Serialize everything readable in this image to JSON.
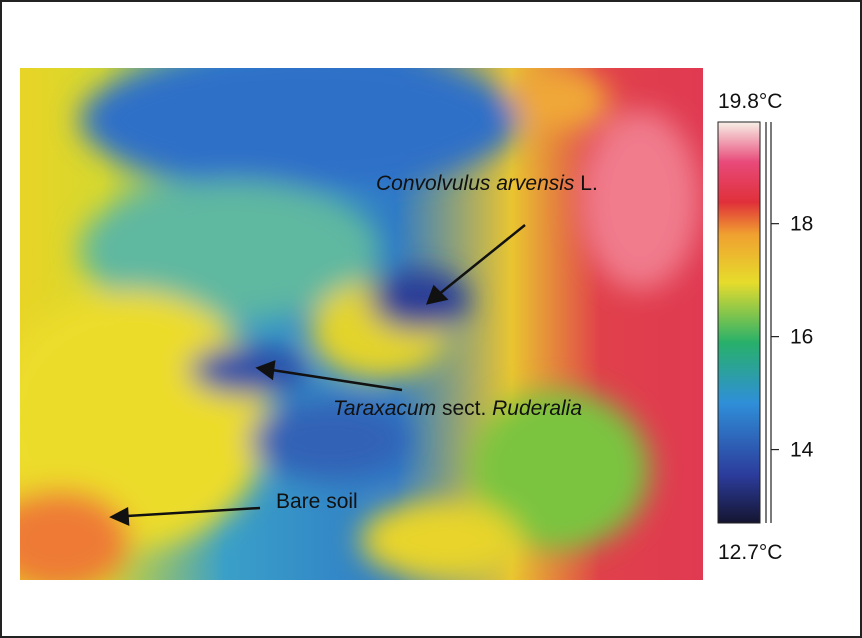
{
  "annotations": [
    {
      "parts": [
        {
          "text": "Convolvulus arvensis",
          "italic": true
        },
        {
          "text": " L.",
          "italic": false
        }
      ]
    },
    {
      "parts": [
        {
          "text": "Taraxacum",
          "italic": true
        },
        {
          "text": " sect. ",
          "italic": false
        },
        {
          "text": "Ruderalia",
          "italic": true
        }
      ]
    },
    {
      "parts": [
        {
          "text": "Bare soil",
          "italic": false
        }
      ]
    }
  ],
  "colorbar": {
    "range": [
      {
        "value": 12.7,
        "label": "12.7°C"
      },
      {
        "value": 19.8,
        "label": "19.8°C"
      }
    ],
    "ticks": [
      14,
      16,
      18
    ]
  }
}
